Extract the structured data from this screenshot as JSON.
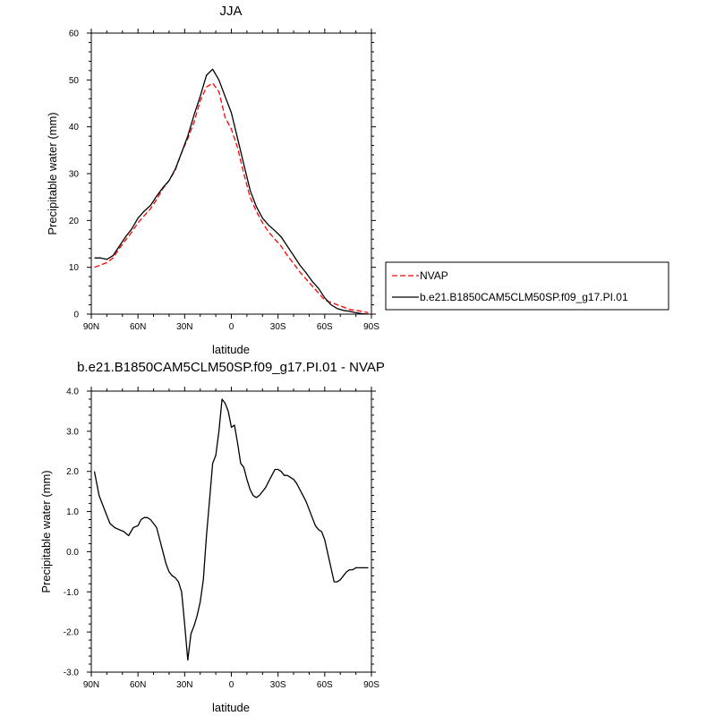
{
  "chart_data": [
    {
      "type": "line",
      "title": "JJA",
      "xlabel": "latitude",
      "ylabel": "Precipitable water (mm)",
      "xlim": [
        90,
        -90
      ],
      "ylim": [
        0,
        60
      ],
      "x_ticks": [
        90,
        60,
        30,
        0,
        -30,
        -60,
        -90
      ],
      "x_tick_labels": [
        "90N",
        "60N",
        "30N",
        "0",
        "30S",
        "60S",
        "90S"
      ],
      "y_ticks": [
        0,
        10,
        20,
        30,
        40,
        50,
        60
      ],
      "y_tick_labels": [
        "0",
        "10",
        "20",
        "30",
        "40",
        "50",
        "60"
      ],
      "grid": false,
      "legend_position": "right, outside",
      "series": [
        {
          "name": "NVAP",
          "color": "#ff0000",
          "dash": "dashed",
          "x": [
            88,
            80,
            76,
            72,
            68,
            64,
            60,
            56,
            52,
            48,
            44,
            40,
            36,
            32,
            28,
            24,
            20,
            16,
            12,
            8,
            4,
            0,
            -4,
            -8,
            -12,
            -16,
            -20,
            -24,
            -28,
            -32,
            -36,
            -40,
            -44,
            -48,
            -52,
            -56,
            -60,
            -64,
            -68,
            -72,
            -76,
            -80,
            -84,
            -88
          ],
          "values": [
            10.0,
            11.0,
            12.0,
            14.0,
            15.8,
            17.5,
            19.5,
            21.0,
            22.5,
            24.5,
            26.8,
            28.5,
            30.8,
            34.5,
            37.5,
            41.0,
            45.5,
            48.5,
            49.3,
            47.5,
            42.0,
            39.5,
            35.5,
            30.0,
            25.0,
            22.0,
            19.5,
            17.5,
            16.0,
            14.5,
            12.5,
            10.8,
            9.0,
            7.5,
            6.0,
            4.5,
            3.0,
            2.5,
            2.0,
            1.5,
            1.0,
            0.8,
            0.6,
            0.3
          ]
        },
        {
          "name": "b.e21.B1850CAM5CLM50SP.f09_g17.PI.01",
          "color": "#000000",
          "dash": "solid",
          "x": [
            88,
            84,
            80,
            76,
            72,
            68,
            64,
            60,
            56,
            52,
            48,
            44,
            40,
            36,
            32,
            28,
            24,
            20,
            16,
            12,
            8,
            4,
            0,
            -4,
            -8,
            -12,
            -16,
            -20,
            -24,
            -28,
            -32,
            -36,
            -40,
            -44,
            -48,
            -52,
            -56,
            -60,
            -64,
            -68,
            -72,
            -76,
            -80,
            -84,
            -88
          ],
          "values": [
            12.0,
            12.0,
            11.7,
            12.5,
            14.5,
            16.5,
            18.2,
            20.5,
            22.0,
            23.2,
            25.2,
            27.0,
            28.5,
            31.0,
            34.5,
            38.0,
            42.5,
            46.5,
            51.0,
            52.3,
            50.0,
            46.5,
            43.0,
            37.5,
            32.0,
            26.5,
            23.0,
            20.5,
            19.0,
            17.8,
            16.5,
            14.5,
            12.5,
            10.5,
            8.8,
            7.0,
            5.5,
            3.5,
            2.0,
            1.2,
            0.8,
            0.6,
            0.3,
            0.1,
            0.0
          ]
        }
      ]
    },
    {
      "type": "line",
      "title": "b.e21.B1850CAM5CLM50SP.f09_g17.PI.01 - NVAP",
      "xlabel": "latitude",
      "ylabel": "Precipitable water (mm)",
      "xlim": [
        90,
        -90
      ],
      "ylim": [
        -3.0,
        4.0
      ],
      "x_ticks": [
        90,
        60,
        30,
        0,
        -30,
        -60,
        -90
      ],
      "x_tick_labels": [
        "90N",
        "60N",
        "30N",
        "0",
        "30S",
        "60S",
        "90S"
      ],
      "y_ticks": [
        -3.0,
        -2.0,
        -1.0,
        0.0,
        1.0,
        2.0,
        3.0,
        4.0
      ],
      "y_tick_labels": [
        "-3.0",
        "-2.0",
        "-1.0",
        "0.0",
        "1.0",
        "2.0",
        "3.0",
        "4.0"
      ],
      "grid": false,
      "series": [
        {
          "name": "",
          "color": "#000000",
          "dash": "solid",
          "x": [
            88,
            85,
            82,
            80,
            78,
            75,
            72,
            69,
            66,
            63,
            60,
            58,
            56,
            54,
            52,
            50,
            48,
            46,
            44,
            42,
            40,
            38,
            36,
            34,
            32,
            30,
            28,
            26,
            24,
            22,
            20,
            18,
            16,
            14,
            12,
            10,
            8,
            6,
            4,
            2,
            0,
            -2,
            -4,
            -6,
            -8,
            -10,
            -12,
            -14,
            -16,
            -18,
            -20,
            -22,
            -24,
            -26,
            -28,
            -30,
            -32,
            -34,
            -36,
            -38,
            -40,
            -42,
            -44,
            -46,
            -48,
            -50,
            -52,
            -54,
            -56,
            -58,
            -60,
            -62,
            -64,
            -66,
            -68,
            -70,
            -72,
            -74,
            -76,
            -78,
            -80,
            -82,
            -84,
            -86,
            -88
          ],
          "values": [
            2.0,
            1.4,
            1.1,
            0.9,
            0.7,
            0.6,
            0.55,
            0.5,
            0.4,
            0.6,
            0.65,
            0.8,
            0.85,
            0.85,
            0.8,
            0.7,
            0.6,
            0.3,
            0.0,
            -0.3,
            -0.5,
            -0.6,
            -0.65,
            -0.75,
            -1.0,
            -1.8,
            -2.7,
            -2.05,
            -1.85,
            -1.6,
            -1.25,
            -0.7,
            0.4,
            1.3,
            2.2,
            2.4,
            3.0,
            3.8,
            3.7,
            3.5,
            3.1,
            3.15,
            2.7,
            2.2,
            2.1,
            1.8,
            1.55,
            1.4,
            1.35,
            1.4,
            1.5,
            1.6,
            1.75,
            1.9,
            2.05,
            2.05,
            2.0,
            1.9,
            1.9,
            1.85,
            1.8,
            1.7,
            1.55,
            1.4,
            1.25,
            1.05,
            0.85,
            0.65,
            0.55,
            0.5,
            0.3,
            -0.05,
            -0.4,
            -0.75,
            -0.75,
            -0.7,
            -0.6,
            -0.5,
            -0.45,
            -0.45,
            -0.4,
            -0.4,
            -0.4,
            -0.4,
            -0.4
          ]
        }
      ]
    }
  ]
}
